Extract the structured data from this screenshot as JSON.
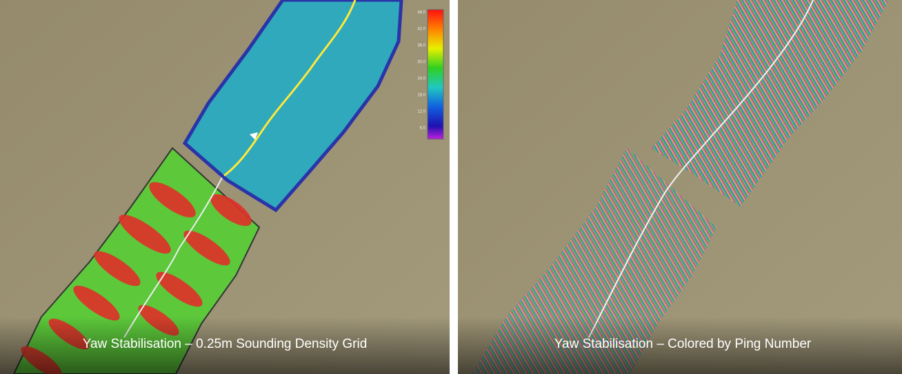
{
  "panels": [
    {
      "caption": "Yaw Stabilisation – 0.25m Sounding Density Grid",
      "colorbar": {
        "labels": [
          "48.0",
          "42.0",
          "36.0",
          "30.0",
          "24.0",
          "18.0",
          "12.0",
          "6.0"
        ]
      }
    },
    {
      "caption": "Yaw Stabilisation – Colored by Ping Number"
    }
  ]
}
